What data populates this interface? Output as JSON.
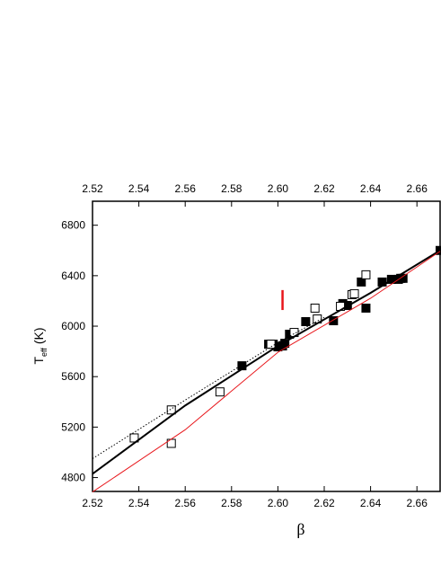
{
  "chart_data": {
    "type": "scatter",
    "xlabel": "β",
    "ylabel": {
      "main": "T",
      "sub": "eff",
      "unit": "(K)"
    },
    "xlim": [
      2.52,
      2.67
    ],
    "ylim": [
      4690,
      6990
    ],
    "xticks": [
      2.52,
      2.54,
      2.56,
      2.58,
      {
        "value": 2.6,
        "label": "2.60"
      },
      2.62,
      2.64,
      2.66
    ],
    "yticks": [
      4800,
      5200,
      5600,
      6000,
      6400,
      6800
    ],
    "series": [
      {
        "marker": "filled-square",
        "color": "#000000",
        "x": [
          2.5845,
          2.596,
          2.598,
          2.6,
          2.602,
          2.603,
          2.605,
          2.612,
          2.624,
          2.628,
          2.63,
          2.636,
          2.638,
          2.645,
          2.649,
          2.652,
          2.653,
          2.654,
          2.67
        ],
        "values": [
          5686,
          5857,
          5857,
          5836,
          5843,
          5864,
          5936,
          6036,
          6043,
          6179,
          6164,
          6350,
          6143,
          6350,
          6371,
          6371,
          6379,
          6379,
          6600
        ]
      },
      {
        "marker": "open-square",
        "color": "#000000",
        "x": [
          2.538,
          2.554,
          2.554,
          2.575,
          2.597,
          2.607,
          2.616,
          2.617,
          2.627,
          2.632,
          2.633,
          2.638
        ],
        "values": [
          5114,
          5336,
          5071,
          5479,
          5857,
          5950,
          6143,
          6057,
          6157,
          6250,
          6257,
          6407
        ]
      },
      {
        "line": "solid",
        "width": 2,
        "color": "#000000",
        "x": [
          2.52,
          2.56,
          2.6,
          2.64,
          2.67
        ],
        "values": [
          4829,
          5371,
          5843,
          6264,
          6600
        ]
      },
      {
        "line": "dotted",
        "width": 1,
        "color": "#000000",
        "x": [
          2.52,
          2.56,
          2.6,
          2.62
        ],
        "values": [
          4950,
          5414,
          5870,
          6070
        ]
      },
      {
        "line": "solid",
        "width": 1,
        "color": "#e8161b",
        "x": [
          2.52,
          2.56,
          2.6,
          2.64,
          2.67
        ],
        "values": [
          4686,
          5179,
          5793,
          6221,
          6593
        ]
      }
    ],
    "error_bar": {
      "x": 2.602,
      "value": 6207,
      "error": 79,
      "color": "#e8161b"
    }
  }
}
